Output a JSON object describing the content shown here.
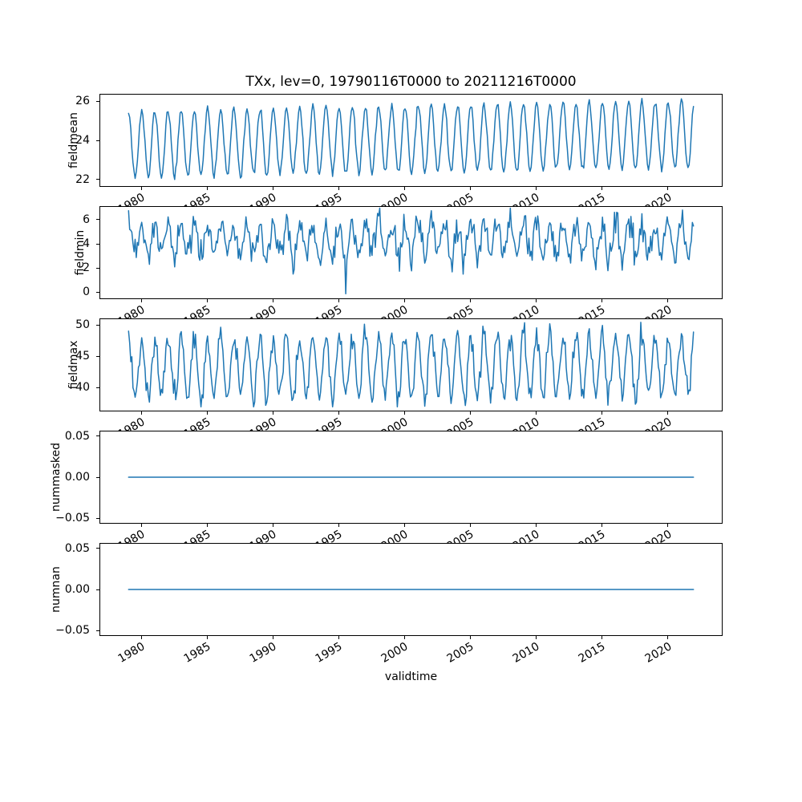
{
  "figure": {
    "title": "TXx, lev=0, 19790116T0000 to 20211216T0000",
    "variable": "TXx",
    "level": "lev=0",
    "time_start": "19790116T0000",
    "time_end": "20211216T0000",
    "background": "#ffffff",
    "line_color": "#1f77b4",
    "grid": false,
    "legend": null
  },
  "xaxis": {
    "label": "validtime",
    "lim": [
      1976.89,
      2024.11
    ],
    "ticks": [
      1980,
      1985,
      1990,
      1995,
      2000,
      2005,
      2010,
      2015,
      2020
    ],
    "tick_labels": [
      "1980",
      "1985",
      "1990",
      "1995",
      "2000",
      "2005",
      "2010",
      "2015",
      "2020"
    ],
    "tick_rotation_deg": 30
  },
  "chart_data": [
    {
      "type": "line",
      "ylabel": "fieldmean",
      "ylim": [
        21.65,
        26.35
      ],
      "yticks": [
        22,
        24,
        26
      ],
      "ytick_labels": [
        "22",
        "24",
        "26"
      ],
      "grid": false,
      "series": [
        {
          "name": "fieldmean",
          "color": "#1f77b4",
          "description": "annual seasonal cycle, monthly samples, peaks in January",
          "generator": {
            "kind": "seasonal",
            "t_start": 1979.0417,
            "t_end": 2021.9583,
            "points_per_year": 12,
            "base": 23.8,
            "amplitude": 1.7,
            "trend_per_year": 0.012,
            "noise_sd": 0.1,
            "seed": 11,
            "clip": [
              21.75,
              26.25
            ]
          },
          "approx_min": 21.8,
          "approx_max": 26.1
        }
      ]
    },
    {
      "type": "line",
      "ylabel": "fieldmin",
      "ylim": [
        -0.5,
        7.05
      ],
      "yticks": [
        0,
        2,
        4,
        6
      ],
      "ytick_labels": [
        "0",
        "2",
        "4",
        "6"
      ],
      "grid": false,
      "series": [
        {
          "name": "fieldmin",
          "color": "#1f77b4",
          "description": "noisy annual cycle with sharp dip to ~0 in mid-1995",
          "generator": {
            "kind": "seasonal",
            "t_start": 1979.0417,
            "t_end": 2021.9583,
            "points_per_year": 12,
            "base": 4.3,
            "amplitude": 1.25,
            "trend_per_year": 0.0,
            "noise_sd": 0.6,
            "seed": 23,
            "clip": [
              -0.2,
              6.95
            ],
            "anomalies": [
              {
                "t": 1995.54,
                "value": -0.12
              },
              {
                "t": 2004.46,
                "value": 1.5
              }
            ]
          },
          "approx_min": -0.1,
          "approx_max": 6.9
        }
      ]
    },
    {
      "type": "line",
      "ylabel": "fieldmax",
      "ylim": [
        36.3,
        50.9
      ],
      "yticks": [
        40,
        45,
        50
      ],
      "ytick_labels": [
        "40",
        "45",
        "50"
      ],
      "grid": false,
      "series": [
        {
          "name": "fieldmax",
          "color": "#1f77b4",
          "description": "noisy annual cycle between ~37 and ~50",
          "generator": {
            "kind": "seasonal",
            "t_start": 1979.0417,
            "t_end": 2021.9583,
            "points_per_year": 12,
            "base": 43.2,
            "amplitude": 4.7,
            "trend_per_year": 0.01,
            "noise_sd": 0.95,
            "seed": 37,
            "clip": [
              36.9,
              50.4
            ]
          },
          "approx_min": 37.0,
          "approx_max": 50.0
        }
      ]
    },
    {
      "type": "line",
      "ylabel": "nummasked",
      "ylim": [
        -0.0555,
        0.0555
      ],
      "yticks": [
        -0.05,
        0,
        0.05
      ],
      "ytick_labels": [
        "−0.05",
        "0.00",
        "0.05"
      ],
      "grid": false,
      "series": [
        {
          "name": "nummasked",
          "color": "#1f77b4",
          "description": "constant zero line",
          "generator": {
            "kind": "constant",
            "t_start": 1979.0417,
            "t_end": 2021.9583,
            "value": 0
          },
          "approx_min": 0,
          "approx_max": 0
        }
      ]
    },
    {
      "type": "line",
      "ylabel": "numnan",
      "ylim": [
        -0.0555,
        0.0555
      ],
      "yticks": [
        -0.05,
        0,
        0.05
      ],
      "ytick_labels": [
        "−0.05",
        "0.00",
        "0.05"
      ],
      "grid": false,
      "series": [
        {
          "name": "numnan",
          "color": "#1f77b4",
          "description": "constant zero line",
          "generator": {
            "kind": "constant",
            "t_start": 1979.0417,
            "t_end": 2021.9583,
            "value": 0
          },
          "approx_min": 0,
          "approx_max": 0
        }
      ]
    }
  ]
}
